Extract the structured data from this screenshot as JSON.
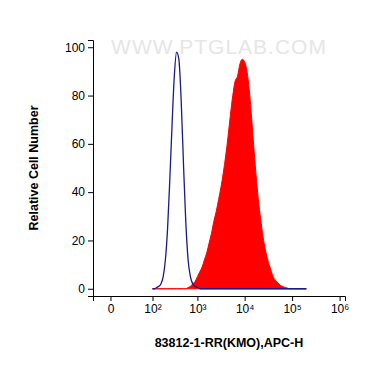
{
  "chart_data": {
    "type": "line",
    "x_label": "83812-1-RR(KMO),APC-H",
    "y_label": "Relative Cell Number",
    "annotations": [
      "WWW.PTGLAB.COM"
    ],
    "log": "x",
    "xlim": [
      -20,
      1300000
    ],
    "xticks": [
      0,
      {
        "value": 100,
        "label": "10²"
      },
      {
        "value": 1000,
        "label": "10³"
      },
      {
        "value": 10000,
        "label": "10⁴"
      },
      {
        "value": 100000,
        "label": "10⁵"
      },
      {
        "value": 1000000,
        "label": "10⁶"
      }
    ],
    "ylim": [
      -3,
      103
    ],
    "yticks": [
      0,
      20,
      40,
      60,
      80,
      100
    ],
    "x": [
      100,
      112,
      126,
      141,
      158,
      178,
      200,
      224,
      251,
      282,
      316,
      355,
      398,
      447,
      501,
      562,
      631,
      708,
      794,
      891,
      1000,
      1122,
      1259,
      1413,
      1585,
      1778,
      1995,
      2239,
      2512,
      2818,
      3162,
      3548,
      3981,
      4467,
      5012,
      5623,
      6310,
      7079,
      7943,
      8913,
      10000,
      11220,
      12589,
      14125,
      15849,
      17783,
      19953,
      22387,
      25119,
      28184,
      31623,
      35481,
      39811,
      44668,
      50119,
      56234,
      63096,
      70795,
      79433,
      89125,
      100000,
      112202,
      125893,
      141254,
      158489,
      177828,
      199526
    ],
    "series": [
      {
        "type": "line",
        "color": "#1a1a8c",
        "values": [
          0,
          0,
          0.5,
          1,
          2,
          5,
          12,
          25,
          45,
          68,
          88,
          98,
          95,
          78,
          52,
          28,
          12,
          5,
          2,
          1,
          0.5,
          0,
          0,
          0,
          0,
          0,
          0,
          0,
          0,
          0,
          0,
          0,
          0,
          0,
          0,
          0,
          0,
          0,
          0,
          0,
          0,
          0,
          0,
          0,
          0,
          0,
          0,
          0,
          0,
          0,
          0,
          0,
          0,
          0,
          0,
          0,
          0,
          0,
          0,
          0,
          0,
          0,
          0,
          0,
          0,
          0,
          0
        ]
      },
      {
        "type": "area",
        "color": "#ff0000",
        "values": [
          0,
          0,
          0,
          0,
          0,
          0,
          0,
          0,
          0,
          0,
          0,
          0,
          0,
          0,
          0,
          0,
          0.5,
          1,
          2,
          3,
          5,
          7,
          9,
          12,
          15,
          19,
          23,
          28,
          32,
          37,
          42,
          48,
          55,
          63,
          72,
          80,
          86,
          88,
          93,
          95,
          94,
          90,
          82,
          70,
          57,
          45,
          35,
          27,
          20,
          15,
          11,
          8,
          5,
          3.5,
          2.5,
          1.5,
          1,
          0.5,
          0.3,
          0,
          0,
          0,
          0,
          0,
          0,
          0,
          0
        ]
      }
    ]
  }
}
